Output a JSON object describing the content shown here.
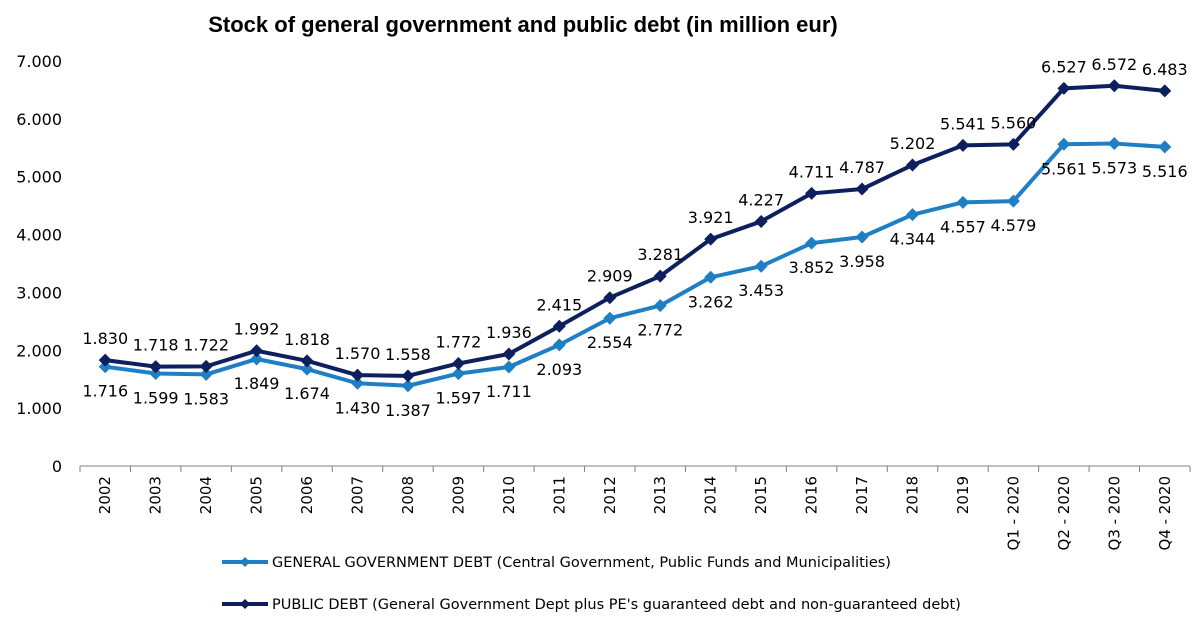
{
  "chart_data": {
    "type": "line",
    "title": "Stock of general government and public debt (in million eur)",
    "xlabel": "",
    "ylabel": "",
    "ylim": [
      0,
      7000
    ],
    "yticks": [
      "0",
      "1.000",
      "2.000",
      "3.000",
      "4.000",
      "5.000",
      "6.000",
      "7.000"
    ],
    "ytick_values": [
      0,
      1000,
      2000,
      3000,
      4000,
      5000,
      6000,
      7000
    ],
    "grid": false,
    "legend_position": "bottom",
    "categories": [
      "2002",
      "2003",
      "2004",
      "2005",
      "2006",
      "2007",
      "2008",
      "2009",
      "2010",
      "2011",
      "2012",
      "2013",
      "2014",
      "2015",
      "2016",
      "2017",
      "2018",
      "2019",
      "Q1 - 2020",
      "Q2 - 2020",
      "Q3 - 2020",
      "Q4 - 2020"
    ],
    "series": [
      {
        "name": "GENERAL GOVERNMENT DEBT (Central Government, Public Funds and Municipalities)",
        "color": "#1f7fc4",
        "values": [
          1716,
          1599,
          1583,
          1849,
          1674,
          1430,
          1387,
          1597,
          1711,
          2093,
          2554,
          2772,
          3262,
          3453,
          3852,
          3958,
          4344,
          4557,
          4579,
          5561,
          5573,
          5516
        ],
        "labels": [
          "1.716",
          "1.599",
          "1.583",
          "1.849",
          "1.674",
          "1.430",
          "1.387",
          "1.597",
          "1.711",
          "2.093",
          "2.554",
          "2.772",
          "3.262",
          "3.453",
          "3.852",
          "3.958",
          "4.344",
          "4.557",
          "4.579",
          "5.561",
          "5.573",
          "5.516"
        ],
        "label_position": "below"
      },
      {
        "name": "PUBLIC DEBT (General Government Dept plus PE's guaranteed debt and non-guaranteed debt)",
        "color": "#0d1f5c",
        "values": [
          1830,
          1718,
          1722,
          1992,
          1818,
          1570,
          1558,
          1772,
          1936,
          2415,
          2909,
          3281,
          3921,
          4227,
          4711,
          4787,
          5202,
          5541,
          5560,
          6527,
          6572,
          6483
        ],
        "labels": [
          "1.830",
          "1.718",
          "1.722",
          "1.992",
          "1.818",
          "1.570",
          "1.558",
          "1.772",
          "1.936",
          "2.415",
          "2.909",
          "3.281",
          "3.921",
          "4.227",
          "4.711",
          "4.787",
          "5.202",
          "5.541",
          "5.560",
          "6.527",
          "6.572",
          "6.483"
        ],
        "label_position": "above"
      }
    ]
  }
}
